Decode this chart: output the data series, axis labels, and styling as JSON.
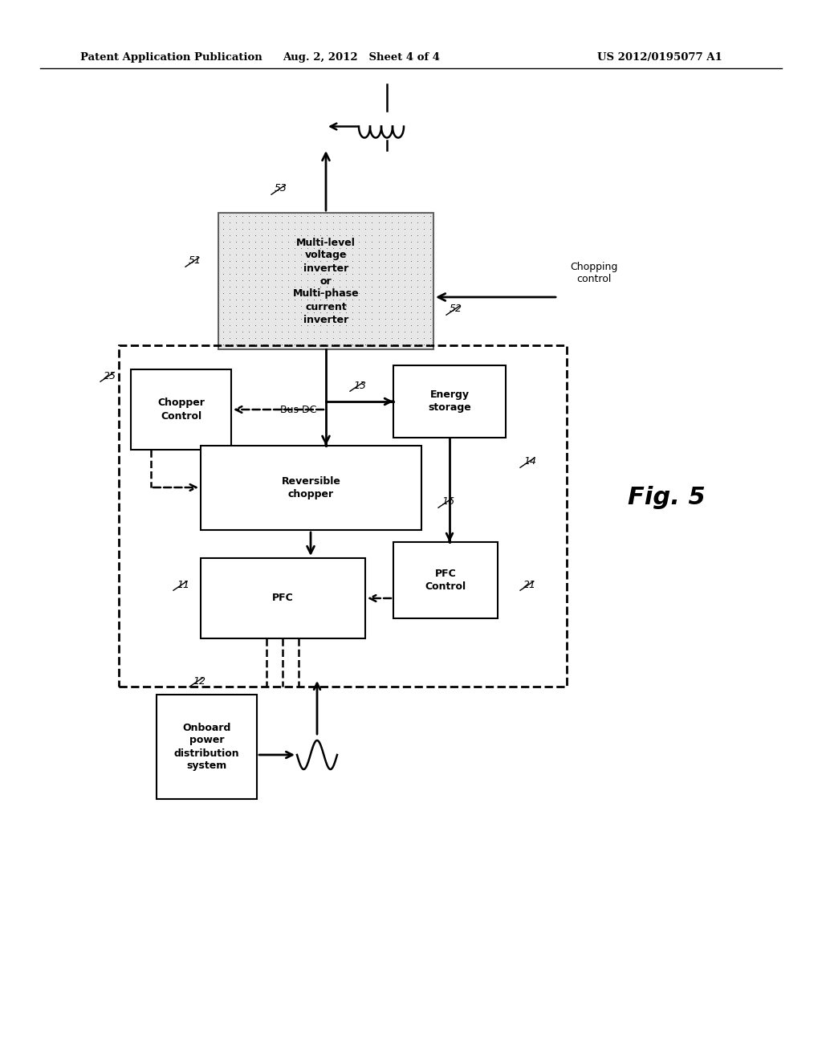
{
  "bg_color": "#ffffff",
  "header_left": "Patent Application Publication",
  "header_center": "Aug. 2, 2012   Sheet 4 of 4",
  "header_right": "US 2012/0195077 A1"
}
